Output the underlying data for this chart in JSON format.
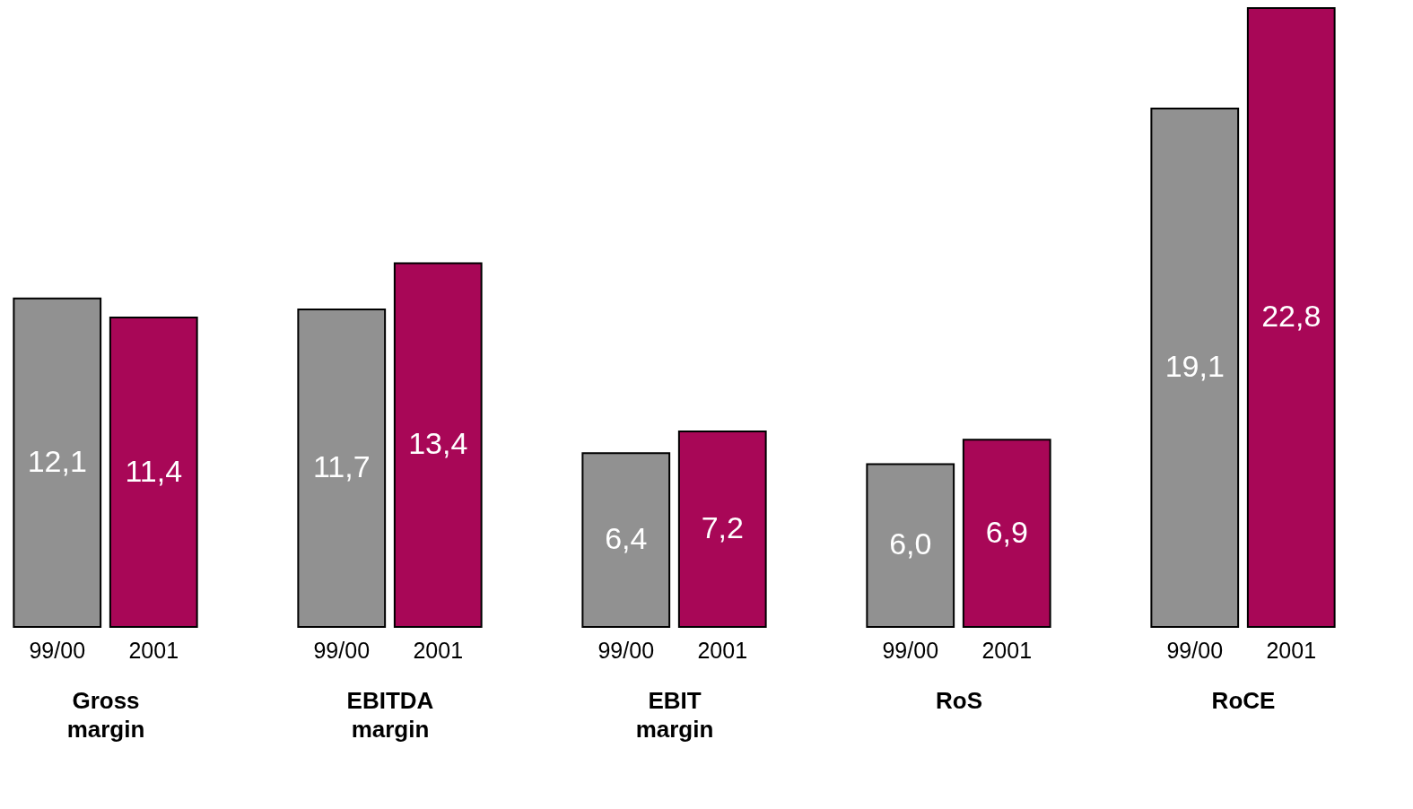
{
  "chart_data": [
    {
      "type": "bar",
      "categories": [
        "99/00",
        "2001"
      ],
      "values": [
        12.1,
        11.4
      ],
      "colors": [
        "#919191",
        "#a80757"
      ],
      "value_labels": [
        "12,1",
        "11,4"
      ],
      "xlabel": "Gross margin"
    },
    {
      "type": "bar",
      "categories": [
        "99/00",
        "2001"
      ],
      "values": [
        11.7,
        13.4
      ],
      "colors": [
        "#919191",
        "#a80757"
      ],
      "value_labels": [
        "11,7",
        "13,4"
      ],
      "xlabel": "EBITDA margin"
    },
    {
      "type": "bar",
      "categories": [
        "99/00",
        "2001"
      ],
      "values": [
        6.4,
        7.2
      ],
      "colors": [
        "#919191",
        "#a80757"
      ],
      "value_labels": [
        "6,4",
        "7,2"
      ],
      "xlabel": "EBIT margin"
    },
    {
      "type": "bar",
      "categories": [
        "99/00",
        "2001"
      ],
      "values": [
        6.0,
        6.9
      ],
      "colors": [
        "#919191",
        "#a80757"
      ],
      "value_labels": [
        "6,0",
        "6,9"
      ],
      "xlabel": "RoS"
    },
    {
      "type": "bar",
      "categories": [
        "99/00",
        "2001"
      ],
      "values": [
        19.1,
        22.8
      ],
      "colors": [
        "#919191",
        "#a80757"
      ],
      "value_labels": [
        "19,1",
        "22,8"
      ],
      "xlabel": "RoCE"
    }
  ]
}
